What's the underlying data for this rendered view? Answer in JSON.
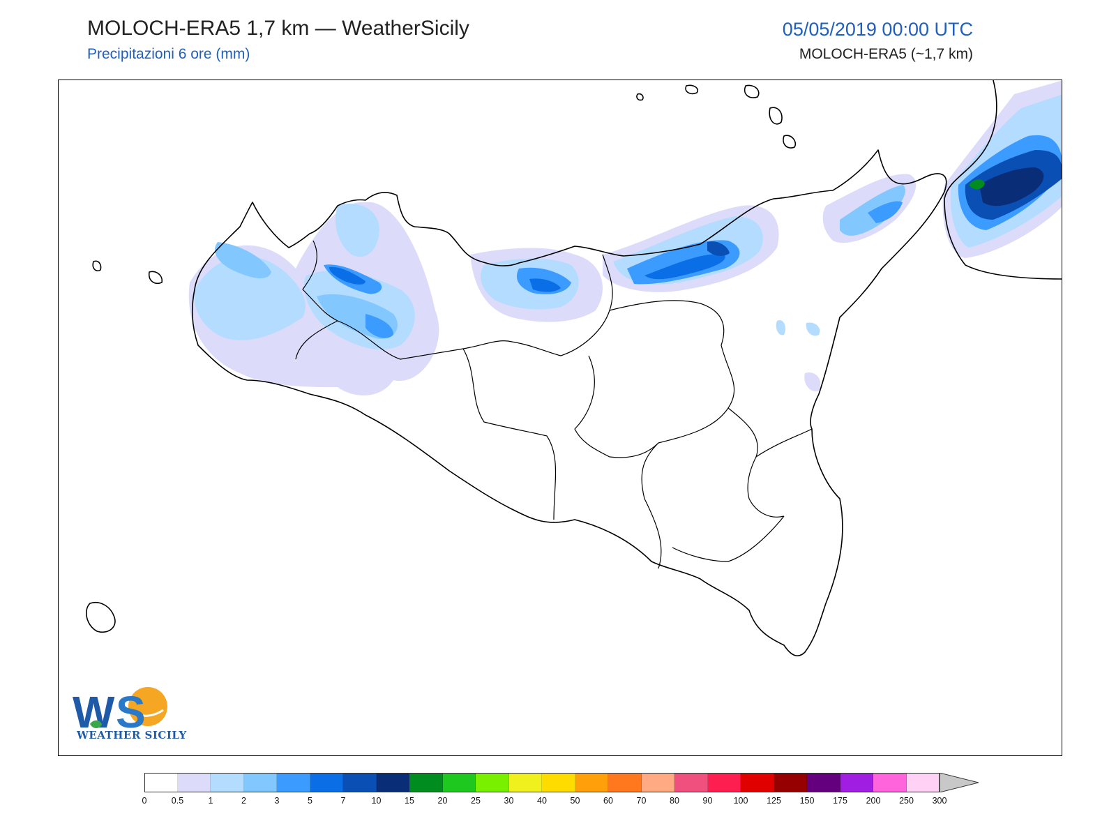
{
  "header": {
    "title": "MOLOCH-ERA5 1,7 km — WeatherSicily",
    "subtitle": "Precipitazioni 6 ore (mm)",
    "datetime": "05/05/2019 00:00 UTC",
    "model": "MOLOCH-ERA5 (~1,7 km)"
  },
  "logo": {
    "letters": "WS",
    "text": "WEATHER SICILY"
  },
  "colorbar": {
    "ticks": [
      "0",
      "0.5",
      "1",
      "2",
      "3",
      "5",
      "7",
      "10",
      "15",
      "20",
      "25",
      "30",
      "40",
      "50",
      "60",
      "70",
      "80",
      "90",
      "100",
      "125",
      "150",
      "175",
      "200",
      "250",
      "300"
    ],
    "colors": [
      "#ffffff",
      "#dcdcfa",
      "#b4dcff",
      "#82c8ff",
      "#3c9bff",
      "#0a6ee6",
      "#0a50b4",
      "#0a2d78",
      "#008c1e",
      "#1ec81e",
      "#78f000",
      "#f0f01e",
      "#ffdc00",
      "#ffa00a",
      "#ff781e",
      "#ffaa82",
      "#f0507d",
      "#ff1e50",
      "#e10000",
      "#960000",
      "#64007d",
      "#a01ee1",
      "#ff64dc",
      "#ffd2f5"
    ],
    "overflow_color": "#c8c8c8"
  },
  "map_colors": {
    "coastline": "#000000",
    "p05": "#dcdcfa",
    "p1": "#b4dcff",
    "p2": "#82c8ff",
    "p3": "#3c9bff",
    "p5": "#0a6ee6",
    "p7": "#0a50b4",
    "p10": "#0a2d78",
    "p15": "#008c1e"
  }
}
